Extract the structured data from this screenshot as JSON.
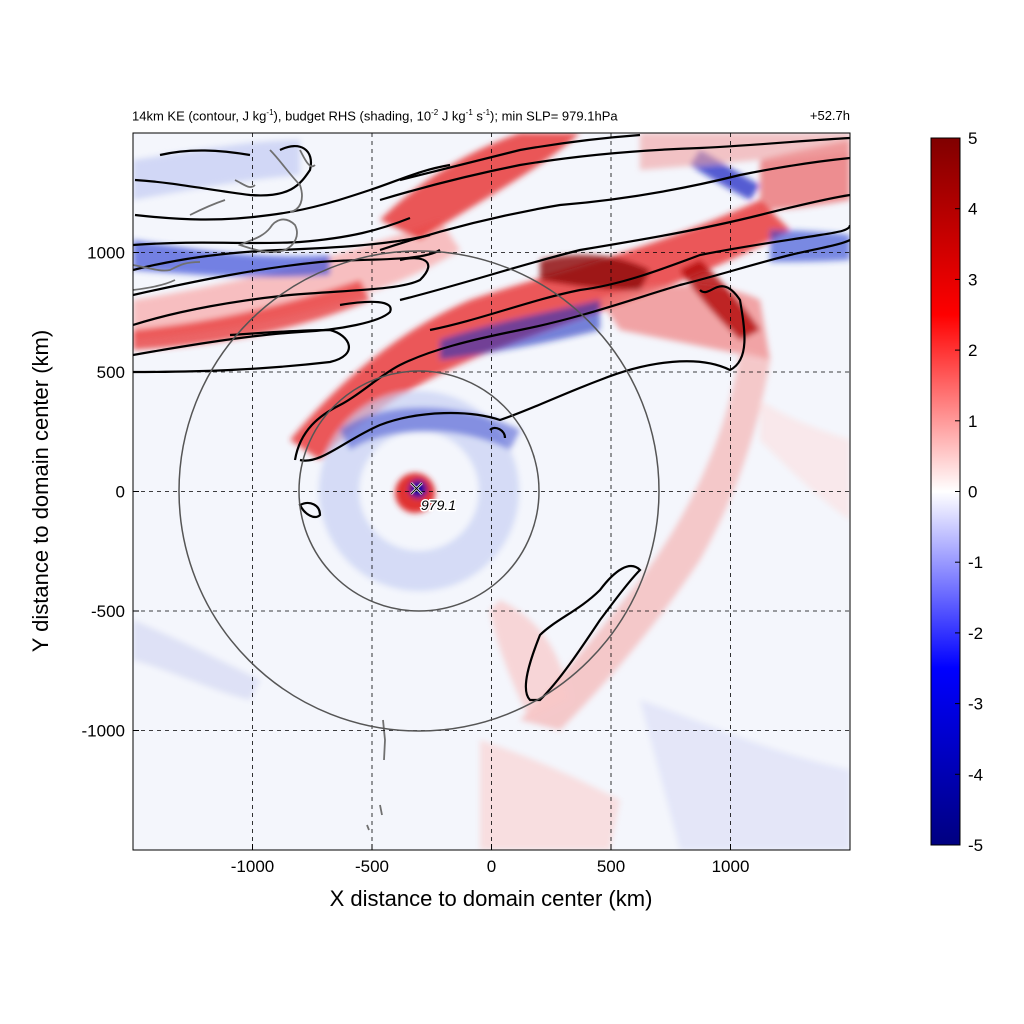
{
  "title": {
    "prefix": "14km KE (contour, J kg",
    "kg_exp": "-1",
    "middle": "), budget RHS (shading, 10",
    "scale_exp": "-2",
    "middle2": " J kg",
    "kg_exp2": "-1",
    "s_part": " s",
    "s_exp": "-1",
    "suffix": "); min SLP= 979.1hPa",
    "time": "+52.7h"
  },
  "chart_data": {
    "type": "heatmap",
    "xlabel": "X distance to domain center (km)",
    "ylabel": "Y distance to domain center (km)",
    "xlim": [
      -1500,
      1500
    ],
    "ylim": [
      -1500,
      1500
    ],
    "xticks": [
      -1000,
      -500,
      0,
      500,
      1000
    ],
    "yticks": [
      -1000,
      -500,
      0,
      500,
      1000
    ],
    "grid": "dashed",
    "colorbar": {
      "min": -5,
      "max": 5,
      "ticks": [
        5,
        4,
        3,
        2,
        1,
        0,
        -1,
        -2,
        -3,
        -4,
        -5
      ],
      "colormap": [
        "#000080",
        "#0000ff",
        "#ffffff",
        "#ff0000",
        "#800000"
      ]
    },
    "storm_center": {
      "x": -310,
      "y": 0,
      "min_slp_label": "979.1"
    },
    "range_circles_radius_km": [
      500,
      1000
    ],
    "contour_color": "#000000",
    "coastline_color": "#707070"
  }
}
